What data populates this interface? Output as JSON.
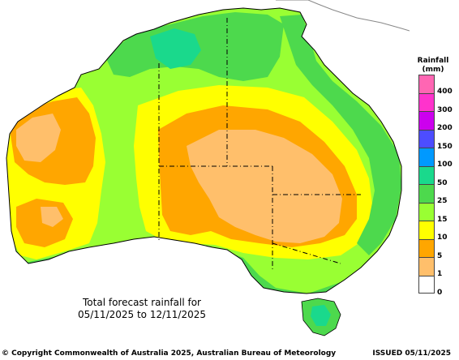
{
  "map": {
    "caption_line1": "Total forecast rainfall for",
    "caption_line2": "05/11/2025 to 12/11/2025",
    "region": "Australia"
  },
  "legend": {
    "title_line1": "Rainfall",
    "title_line2": "(mm)",
    "classes": [
      {
        "label": "400",
        "color": "#ff66b3"
      },
      {
        "label": "300",
        "color": "#ff33cc"
      },
      {
        "label": "200",
        "color": "#cc00ee"
      },
      {
        "label": "150",
        "color": "#4d4dff"
      },
      {
        "label": "100",
        "color": "#0099ff"
      },
      {
        "label": "50",
        "color": "#1ad98c"
      },
      {
        "label": "25",
        "color": "#4dd94d"
      },
      {
        "label": "15",
        "color": "#99ff33"
      },
      {
        "label": "10",
        "color": "#ffff00"
      },
      {
        "label": "5",
        "color": "#ffa600"
      },
      {
        "label": "1",
        "color": "#ffbf6b"
      },
      {
        "label": "0",
        "color": "#ffffff"
      }
    ]
  },
  "footer": {
    "copyright": "© Copyright Commonwealth of Australia 2025, Australian Bureau of Meteorology",
    "issued": "ISSUED 05/11/2025"
  }
}
